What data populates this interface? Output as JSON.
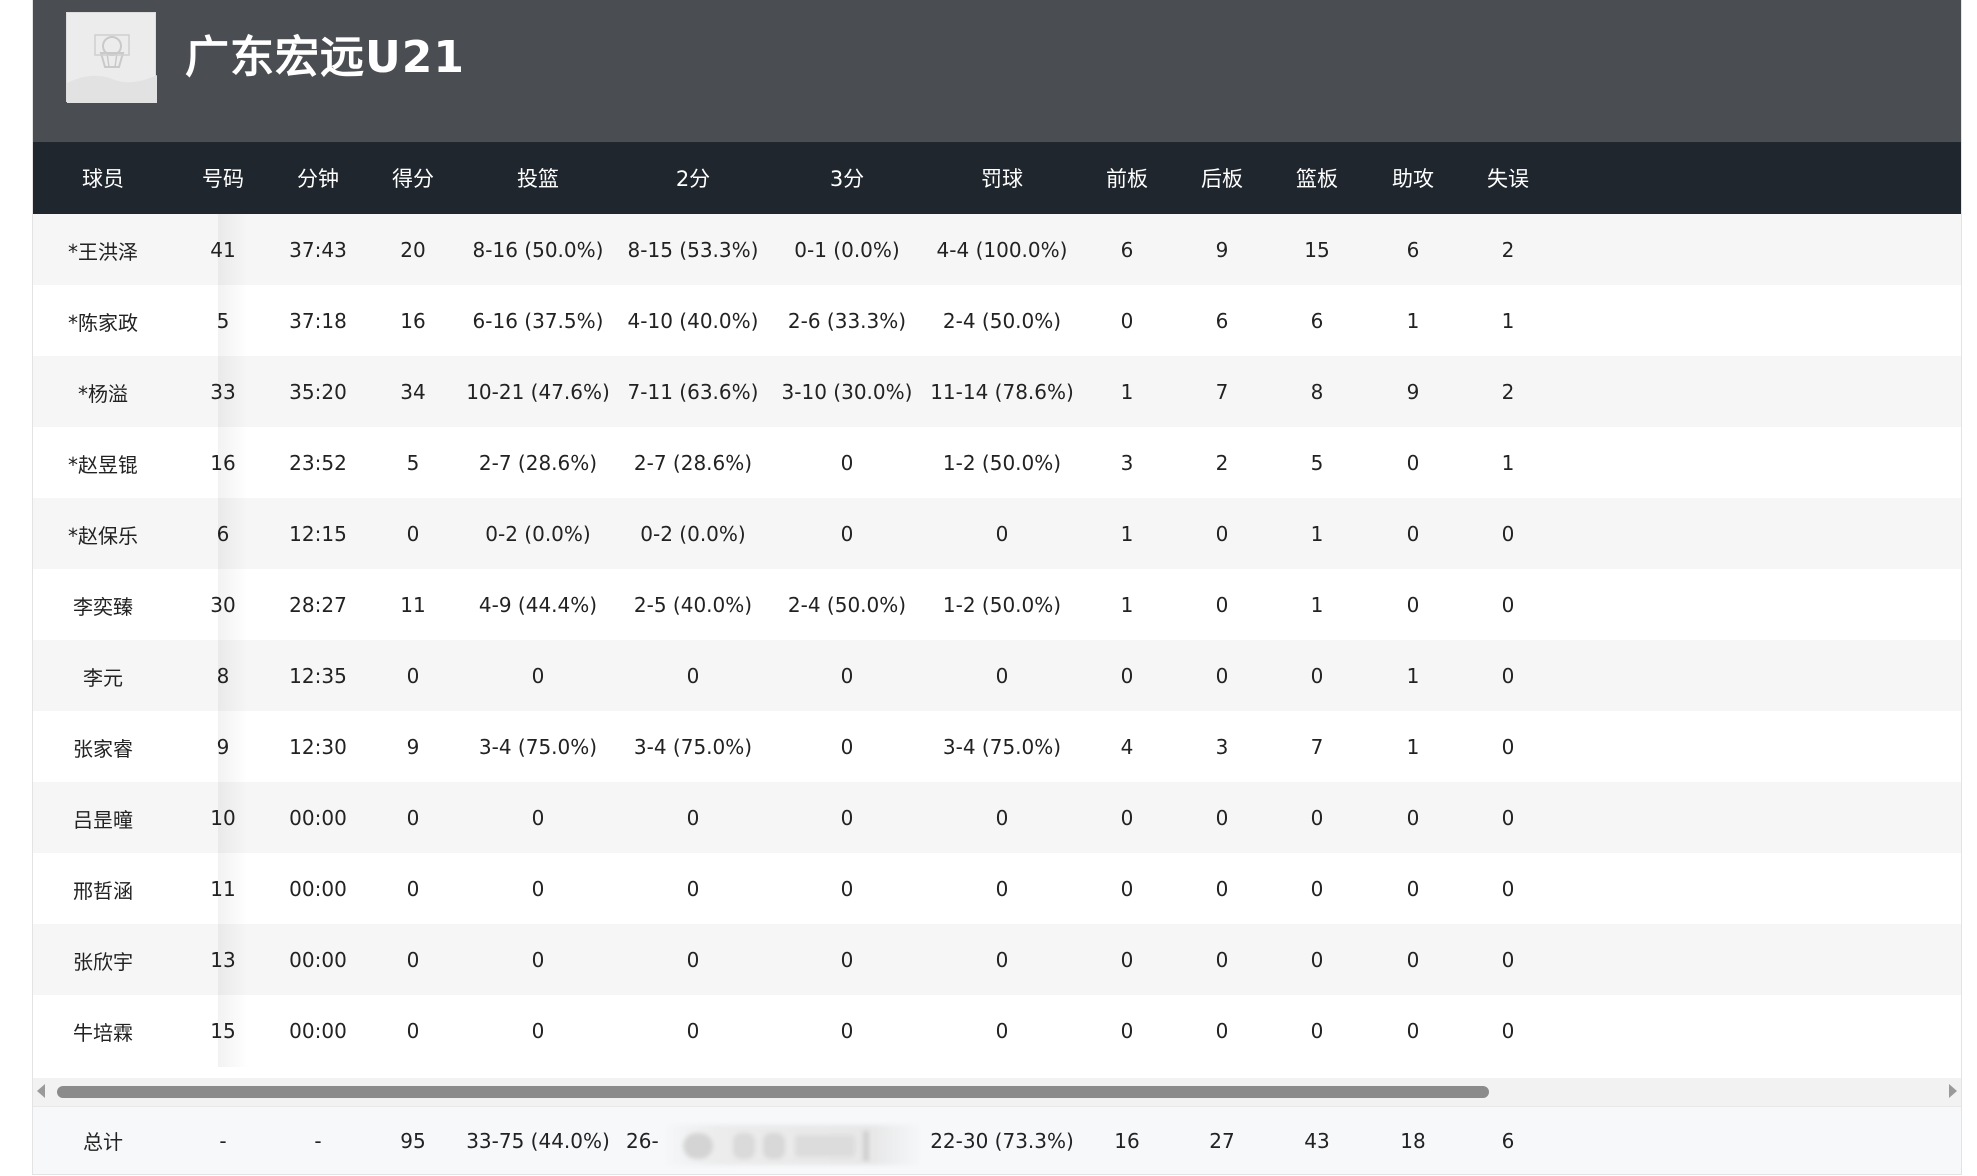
{
  "team": {
    "name": "广东宏远U21",
    "logo_icon": "basketball-hoop-icon"
  },
  "columns": [
    "球员",
    "号码",
    "分钟",
    "得分",
    "投篮",
    "2分",
    "3分",
    "罚球",
    "前板",
    "后板",
    "篮板",
    "助攻",
    "失误"
  ],
  "players": [
    {
      "name": "*王洪泽",
      "number": "41",
      "minutes": "37:43",
      "points": "20",
      "fg": "8-16 (50.0%)",
      "two": "8-15 (53.3%)",
      "three": "0-1 (0.0%)",
      "ft": "4-4 (100.0%)",
      "oreb": "6",
      "dreb": "9",
      "reb": "15",
      "ast": "6",
      "tov": "2"
    },
    {
      "name": "*陈家政",
      "number": "5",
      "minutes": "37:18",
      "points": "16",
      "fg": "6-16 (37.5%)",
      "two": "4-10 (40.0%)",
      "three": "2-6 (33.3%)",
      "ft": "2-4 (50.0%)",
      "oreb": "0",
      "dreb": "6",
      "reb": "6",
      "ast": "1",
      "tov": "1"
    },
    {
      "name": "*杨溢",
      "number": "33",
      "minutes": "35:20",
      "points": "34",
      "fg": "10-21 (47.6%)",
      "two": "7-11 (63.6%)",
      "three": "3-10 (30.0%)",
      "ft": "11-14 (78.6%)",
      "oreb": "1",
      "dreb": "7",
      "reb": "8",
      "ast": "9",
      "tov": "2"
    },
    {
      "name": "*赵昱锟",
      "number": "16",
      "minutes": "23:52",
      "points": "5",
      "fg": "2-7 (28.6%)",
      "two": "2-7 (28.6%)",
      "three": "0",
      "ft": "1-2 (50.0%)",
      "oreb": "3",
      "dreb": "2",
      "reb": "5",
      "ast": "0",
      "tov": "1"
    },
    {
      "name": "*赵保乐",
      "number": "6",
      "minutes": "12:15",
      "points": "0",
      "fg": "0-2 (0.0%)",
      "two": "0-2 (0.0%)",
      "three": "0",
      "ft": "0",
      "oreb": "1",
      "dreb": "0",
      "reb": "1",
      "ast": "0",
      "tov": "0"
    },
    {
      "name": "李奕臻",
      "number": "30",
      "minutes": "28:27",
      "points": "11",
      "fg": "4-9 (44.4%)",
      "two": "2-5 (40.0%)",
      "three": "2-4 (50.0%)",
      "ft": "1-2 (50.0%)",
      "oreb": "1",
      "dreb": "0",
      "reb": "1",
      "ast": "0",
      "tov": "0"
    },
    {
      "name": "李元",
      "number": "8",
      "minutes": "12:35",
      "points": "0",
      "fg": "0",
      "two": "0",
      "three": "0",
      "ft": "0",
      "oreb": "0",
      "dreb": "0",
      "reb": "0",
      "ast": "1",
      "tov": "0"
    },
    {
      "name": "张家睿",
      "number": "9",
      "minutes": "12:30",
      "points": "9",
      "fg": "3-4 (75.0%)",
      "two": "3-4 (75.0%)",
      "three": "0",
      "ft": "3-4 (75.0%)",
      "oreb": "4",
      "dreb": "3",
      "reb": "7",
      "ast": "1",
      "tov": "0"
    },
    {
      "name": "吕昰曈",
      "number": "10",
      "minutes": "00:00",
      "points": "0",
      "fg": "0",
      "two": "0",
      "three": "0",
      "ft": "0",
      "oreb": "0",
      "dreb": "0",
      "reb": "0",
      "ast": "0",
      "tov": "0"
    },
    {
      "name": "邢哲涵",
      "number": "11",
      "minutes": "00:00",
      "points": "0",
      "fg": "0",
      "two": "0",
      "three": "0",
      "ft": "0",
      "oreb": "0",
      "dreb": "0",
      "reb": "0",
      "ast": "0",
      "tov": "0"
    },
    {
      "name": "张欣宇",
      "number": "13",
      "minutes": "00:00",
      "points": "0",
      "fg": "0",
      "two": "0",
      "three": "0",
      "ft": "0",
      "oreb": "0",
      "dreb": "0",
      "reb": "0",
      "ast": "0",
      "tov": "0"
    },
    {
      "name": "牛培霖",
      "number": "15",
      "minutes": "00:00",
      "points": "0",
      "fg": "0",
      "two": "0",
      "three": "0",
      "ft": "0",
      "oreb": "0",
      "dreb": "0",
      "reb": "0",
      "ast": "0",
      "tov": "0"
    }
  ],
  "totals": {
    "label": "总计",
    "number": "-",
    "minutes": "-",
    "points": "95",
    "fg": "33-75 (44.0%)",
    "two": "26-",
    "three": "",
    "ft": "22-30 (73.3%)",
    "oreb": "16",
    "dreb": "27",
    "reb": "43",
    "ast": "18",
    "tov": "6"
  },
  "colors": {
    "team_header_bg": "#4a4d51",
    "column_header_bg": "#20262e",
    "row_alt_bg": "#f6f6f6",
    "scroll_thumb": "#8b8b8b"
  }
}
